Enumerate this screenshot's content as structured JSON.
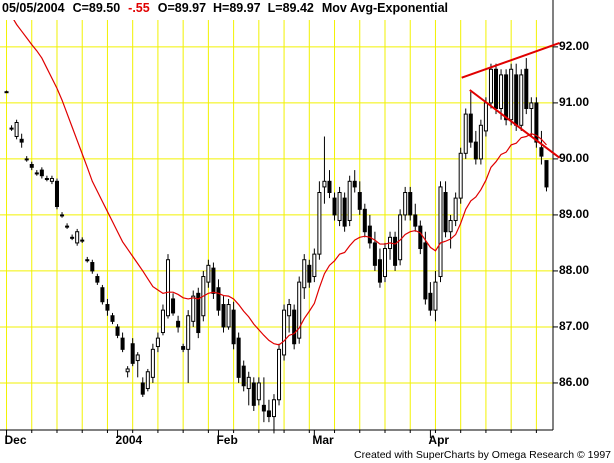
{
  "header": {
    "date": "05/05/2004",
    "close": "C=89.50",
    "change": "-.55",
    "open": "O=89.97",
    "high": "H=89.97",
    "low": "L=89.42",
    "study": "Mov Avg-Exponential"
  },
  "footer": "Created with SuperCharts by Omega Research © 1997",
  "chart_data": {
    "type": "candlestick",
    "up_color": "#ffffff",
    "down_color": "#000000",
    "outline_color": "#000000",
    "grid_color": "#f2f200",
    "grid": true,
    "categories": [
      "Dec",
      null,
      null,
      null,
      null,
      null,
      null,
      null,
      null,
      null,
      null,
      null,
      null,
      null,
      null,
      null,
      null,
      null,
      null,
      null,
      null,
      null,
      "2004",
      null,
      null,
      null,
      null,
      null,
      null,
      null,
      null,
      null,
      null,
      null,
      null,
      null,
      null,
      null,
      null,
      null,
      null,
      null,
      "Feb",
      null,
      null,
      null,
      null,
      null,
      null,
      null,
      null,
      null,
      null,
      null,
      null,
      null,
      null,
      null,
      null,
      null,
      null,
      "Mar",
      null,
      null,
      null,
      null,
      null,
      null,
      null,
      null,
      null,
      null,
      null,
      null,
      null,
      null,
      null,
      null,
      null,
      null,
      null,
      null,
      null,
      null,
      "Apr",
      null,
      null,
      null,
      null,
      null,
      null,
      null,
      null,
      null,
      null,
      null,
      null,
      null,
      null,
      null,
      null,
      null,
      null,
      null,
      null,
      null,
      null,
      null
    ],
    "open": [
      91.2,
      90.55,
      90.4,
      90.35,
      90.0,
      89.9,
      89.75,
      89.8,
      89.65,
      89.6,
      89.6,
      89.0,
      88.8,
      88.6,
      88.5,
      88.55,
      88.2,
      88.15,
      87.9,
      87.7,
      87.4,
      87.2,
      87.0,
      86.8,
      86.2,
      86.7,
      86.4,
      86.0,
      85.9,
      86.1,
      86.65,
      86.9,
      87.2,
      87.5,
      87.1,
      86.65,
      86.6,
      87.1,
      87.6,
      87.2,
      87.8,
      88.05,
      87.7,
      87.4,
      87.0,
      87.3,
      86.8,
      86.3,
      85.9,
      86.0,
      85.7,
      85.6,
      85.5,
      85.4,
      85.7,
      86.5,
      87.2,
      87.3,
      86.8,
      87.7,
      88.1,
      87.9,
      88.3,
      89.5,
      89.6,
      89.3,
      88.9,
      89.3,
      88.9,
      89.6,
      89.4,
      89.1,
      88.8,
      88.5,
      88.2,
      87.9,
      88.4,
      88.6,
      88.2,
      89.0,
      89.4,
      89.0,
      88.8,
      88.5,
      87.6,
      87.3,
      87.9,
      89.4,
      88.7,
      88.9,
      89.3,
      90.1,
      90.8,
      90.3,
      90.0,
      90.5,
      91.0,
      91.6,
      90.9,
      91.5,
      90.7,
      91.5,
      90.6,
      91.6,
      90.9,
      91.0,
      90.2,
      89.97
    ],
    "high": [
      91.22,
      90.6,
      90.7,
      90.45,
      90.05,
      89.95,
      89.8,
      89.85,
      89.7,
      89.7,
      89.65,
      89.05,
      88.85,
      88.65,
      88.75,
      88.6,
      88.25,
      88.2,
      87.95,
      87.75,
      87.5,
      87.25,
      87.05,
      86.9,
      86.3,
      86.8,
      86.55,
      86.1,
      86.25,
      86.7,
      86.9,
      87.4,
      88.3,
      87.6,
      87.2,
      86.7,
      87.3,
      87.65,
      87.7,
      88.0,
      88.2,
      88.15,
      87.85,
      87.55,
      87.5,
      87.45,
      86.9,
      86.4,
      86.2,
      86.1,
      86.1,
      86.1,
      85.7,
      85.8,
      86.7,
      87.4,
      87.5,
      87.4,
      87.9,
      88.3,
      88.2,
      88.4,
      89.6,
      90.4,
      89.8,
      89.4,
      89.5,
      89.4,
      89.7,
      89.8,
      89.6,
      89.2,
      89.0,
      88.7,
      88.4,
      88.5,
      88.7,
      88.7,
      89.1,
      89.5,
      89.5,
      89.2,
      88.9,
      88.7,
      87.8,
      88.0,
      89.6,
      89.6,
      89.0,
      89.4,
      90.2,
      90.9,
      91.2,
      90.5,
      90.7,
      91.1,
      91.7,
      91.7,
      91.6,
      91.6,
      91.7,
      91.7,
      91.6,
      91.8,
      91.1,
      91.1,
      90.5,
      89.97
    ],
    "low": [
      91.18,
      90.5,
      90.35,
      90.2,
      89.95,
      89.8,
      89.7,
      89.65,
      89.6,
      89.55,
      89.1,
      88.95,
      88.75,
      88.55,
      88.45,
      88.5,
      88.15,
      87.95,
      87.75,
      87.4,
      87.2,
      87.05,
      86.8,
      86.55,
      86.1,
      86.3,
      86.1,
      85.75,
      85.85,
      86.0,
      86.55,
      86.85,
      87.15,
      87.2,
      86.9,
      86.55,
      86.0,
      87.0,
      86.8,
      87.1,
      87.7,
      87.5,
      87.2,
      86.9,
      86.95,
      86.6,
      86.0,
      85.85,
      85.6,
      85.5,
      85.6,
      85.3,
      85.3,
      85.1,
      85.6,
      86.4,
      86.9,
      86.6,
      86.7,
      87.5,
      87.7,
      87.8,
      88.2,
      89.2,
      89.3,
      88.9,
      88.8,
      88.7,
      88.8,
      89.4,
      89.0,
      88.6,
      88.4,
      88.0,
      87.7,
      87.8,
      88.2,
      88.0,
      88.1,
      88.9,
      88.9,
      88.7,
      88.3,
      87.4,
      87.2,
      87.1,
      87.8,
      88.6,
      88.4,
      88.8,
      89.2,
      90.0,
      90.2,
      89.9,
      89.9,
      90.4,
      90.9,
      90.8,
      90.7,
      90.6,
      90.6,
      90.5,
      90.5,
      90.8,
      90.4,
      90.2,
      89.9,
      89.42
    ],
    "close": [
      91.2,
      90.55,
      90.65,
      90.3,
      90.0,
      89.85,
      89.75,
      89.7,
      89.65,
      89.65,
      89.15,
      89.0,
      88.8,
      88.6,
      88.7,
      88.55,
      88.2,
      88.0,
      87.8,
      87.45,
      87.3,
      87.1,
      86.85,
      86.6,
      86.25,
      86.35,
      86.5,
      85.8,
      86.2,
      86.6,
      86.8,
      87.3,
      88.2,
      87.25,
      87.0,
      86.6,
      87.2,
      87.55,
      86.9,
      87.9,
      88.1,
      87.6,
      87.3,
      87.0,
      87.4,
      86.7,
      86.1,
      85.95,
      86.1,
      85.6,
      86.0,
      85.5,
      85.4,
      85.7,
      86.6,
      87.3,
      87.4,
      86.7,
      87.8,
      88.2,
      87.8,
      88.3,
      89.4,
      89.6,
      89.4,
      89.0,
      89.4,
      88.8,
      89.6,
      89.5,
      89.1,
      88.7,
      88.5,
      88.1,
      87.8,
      88.4,
      88.6,
      88.1,
      89.0,
      89.4,
      89.0,
      88.8,
      88.4,
      87.5,
      87.3,
      87.8,
      89.5,
      88.7,
      88.9,
      89.3,
      90.1,
      90.8,
      90.3,
      90.0,
      90.6,
      91.0,
      91.6,
      90.9,
      91.5,
      90.7,
      91.6,
      90.6,
      91.5,
      90.9,
      91.0,
      90.3,
      90.05,
      89.5
    ],
    "moving_average": {
      "color": "#e00000",
      "values": [
        92.7,
        92.55,
        92.4,
        92.28,
        92.16,
        92.04,
        91.93,
        91.8,
        91.62,
        91.44,
        91.26,
        91.05,
        90.81,
        90.57,
        90.33,
        90.09,
        89.85,
        89.6,
        89.42,
        89.24,
        89.06,
        88.88,
        88.7,
        88.52,
        88.39,
        88.26,
        88.13,
        88.0,
        87.86,
        87.72,
        87.66,
        87.6,
        87.62,
        87.62,
        87.58,
        87.52,
        87.5,
        87.52,
        87.5,
        87.55,
        87.6,
        87.62,
        87.6,
        87.56,
        87.55,
        87.5,
        87.4,
        87.28,
        87.18,
        87.05,
        86.95,
        86.85,
        86.76,
        86.7,
        86.68,
        86.75,
        86.85,
        86.88,
        86.98,
        87.15,
        87.28,
        87.42,
        87.7,
        87.95,
        88.1,
        88.18,
        88.3,
        88.33,
        88.45,
        88.55,
        88.6,
        88.62,
        88.6,
        88.55,
        88.48,
        88.48,
        88.5,
        88.48,
        88.55,
        88.65,
        88.7,
        88.72,
        88.68,
        88.55,
        88.42,
        88.36,
        88.5,
        88.53,
        88.57,
        88.65,
        88.85,
        89.1,
        89.25,
        89.32,
        89.45,
        89.62,
        89.85,
        89.95,
        90.08,
        90.12,
        90.25,
        90.28,
        90.38,
        90.4,
        90.45,
        90.42,
        90.35,
        90.25
      ]
    },
    "trendlines": [
      {
        "color": "#e00000",
        "x": [
          90.2,
          109.6
        ],
        "y": [
          91.45,
          92.07
        ]
      },
      {
        "color": "#e00000",
        "x": [
          91.8,
          109.6
        ],
        "y": [
          91.23,
          90.02
        ]
      }
    ],
    "ylim": [
      85.16,
      92.48
    ],
    "yticks": [
      {
        "value": 86,
        "label": "86.00"
      },
      {
        "value": 87,
        "label": "87.00"
      },
      {
        "value": 88,
        "label": "88.00"
      },
      {
        "value": 89,
        "label": "89.00"
      },
      {
        "value": 90,
        "label": "90.00"
      },
      {
        "value": 91,
        "label": "91.00"
      },
      {
        "value": 92,
        "label": "92.00"
      }
    ]
  }
}
